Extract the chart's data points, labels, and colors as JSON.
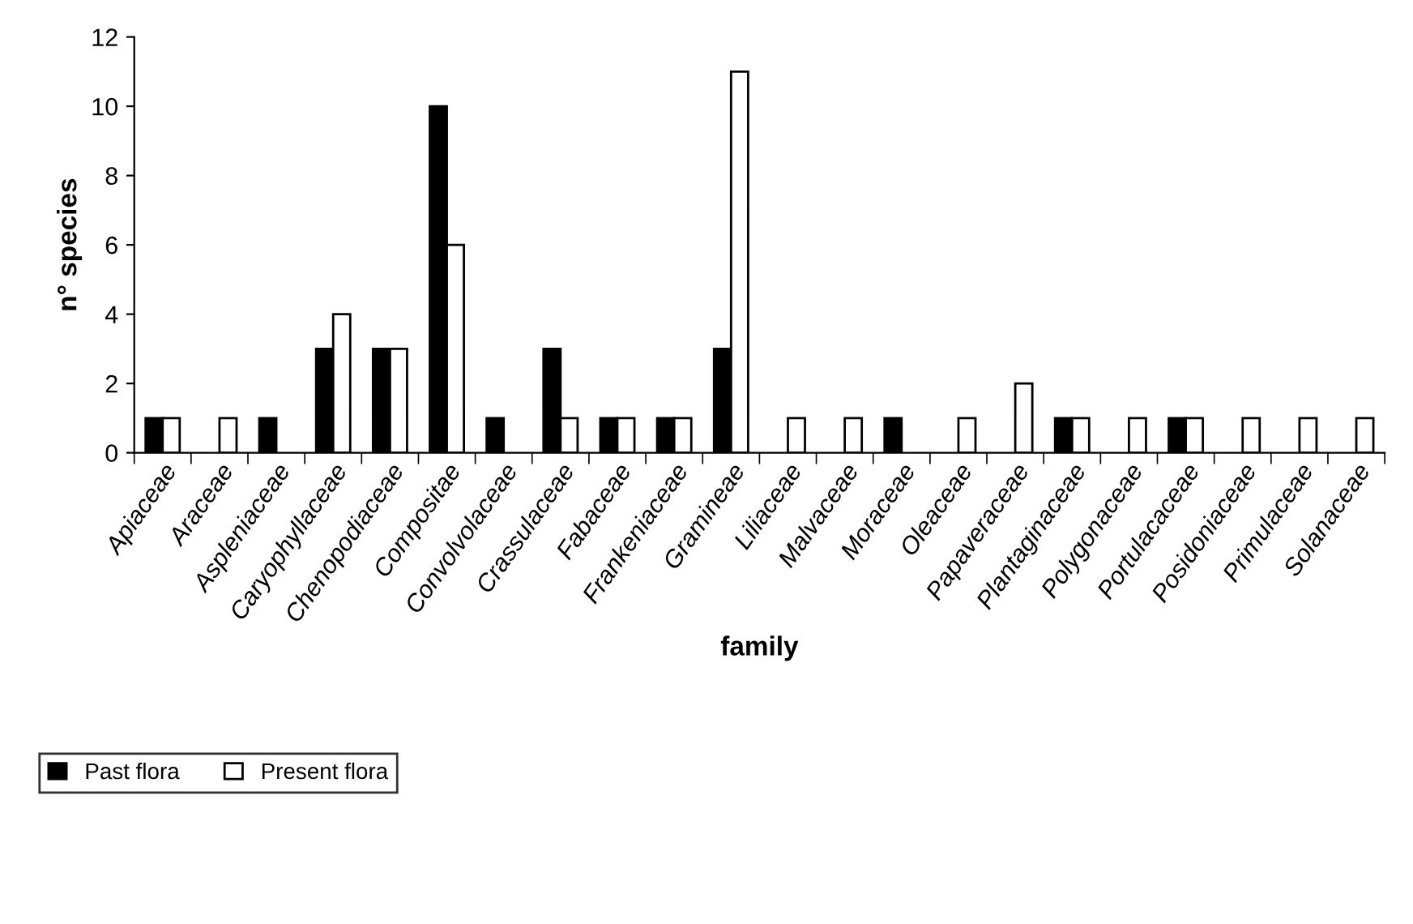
{
  "chart_data": {
    "type": "bar",
    "xlabel": "family",
    "ylabel": "n° species",
    "categories": [
      "Apiaceae",
      "Araceae",
      "Aspleniaceae",
      "Caryophyllaceae",
      "Chenopodiaceae",
      "Compositae",
      "Convolvolaceae",
      "Crassulaceae",
      "Fabaceae",
      "Frankeniaceae",
      "Gramineae",
      "Liliaceae",
      "Malvaceae",
      "Moraceae",
      "Oleaceae",
      "Papaveraceae",
      "Plantaginaceae",
      "Polygonaceae",
      "Portulacaceae",
      "Posidoniaceae",
      "Primulaceae",
      "Solanaceae"
    ],
    "series": [
      {
        "name": "Past flora",
        "color": "#000000",
        "values": [
          1,
          0,
          1,
          3,
          3,
          10,
          1,
          3,
          1,
          1,
          3,
          0,
          0,
          1,
          0,
          0,
          1,
          0,
          1,
          0,
          0,
          0
        ]
      },
      {
        "name": "Present flora",
        "color": "#ffffff",
        "values": [
          1,
          1,
          0,
          4,
          3,
          6,
          0,
          1,
          1,
          1,
          11,
          1,
          1,
          0,
          1,
          2,
          1,
          1,
          1,
          1,
          1,
          1
        ]
      }
    ],
    "ylim": [
      0,
      12
    ],
    "yticks": [
      0,
      2,
      4,
      6,
      8,
      10,
      12
    ],
    "grid": false,
    "legend": "bottom left"
  }
}
